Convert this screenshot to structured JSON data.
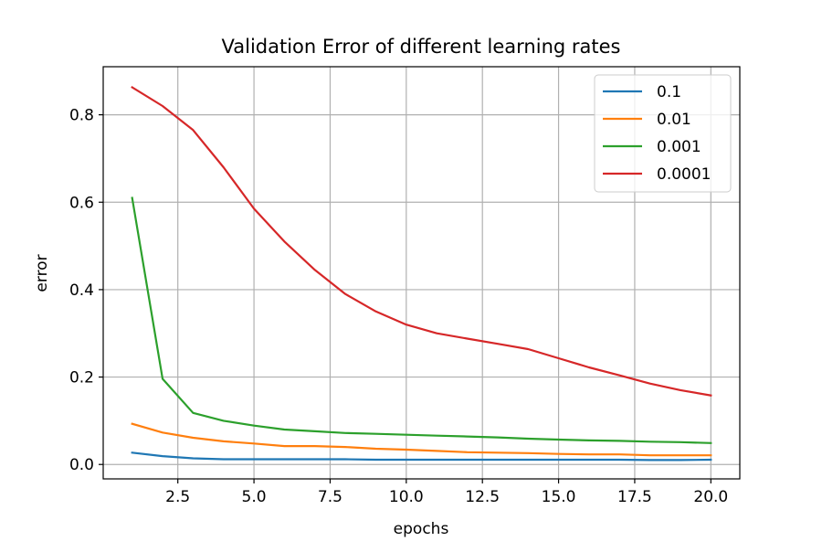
{
  "chart_data": {
    "type": "line",
    "title": "Validation Error of different learning rates",
    "xlabel": "epochs",
    "ylabel": "error",
    "xlim": [
      0.05,
      20.95
    ],
    "ylim": [
      -0.033,
      0.91
    ],
    "xticks": [
      2.5,
      5.0,
      7.5,
      10.0,
      12.5,
      15.0,
      17.5,
      20.0
    ],
    "xtick_labels": [
      "2.5",
      "5.0",
      "7.5",
      "10.0",
      "12.5",
      "15.0",
      "17.5",
      "20.0"
    ],
    "yticks": [
      0.0,
      0.2,
      0.4,
      0.6,
      0.8
    ],
    "ytick_labels": [
      "0.0",
      "0.2",
      "0.4",
      "0.6",
      "0.8"
    ],
    "grid": true,
    "legend_position": "top-right",
    "x": [
      1,
      2,
      3,
      4,
      5,
      6,
      7,
      8,
      9,
      10,
      11,
      12,
      13,
      14,
      15,
      16,
      17,
      18,
      19,
      20
    ],
    "series": [
      {
        "name": "0.1",
        "color": "#1f77b4",
        "values": [
          0.027,
          0.019,
          0.014,
          0.012,
          0.012,
          0.012,
          0.012,
          0.012,
          0.011,
          0.011,
          0.011,
          0.011,
          0.011,
          0.011,
          0.011,
          0.011,
          0.011,
          0.01,
          0.01,
          0.011
        ]
      },
      {
        "name": "0.01",
        "color": "#ff7f0e",
        "values": [
          0.093,
          0.073,
          0.061,
          0.053,
          0.048,
          0.042,
          0.042,
          0.04,
          0.036,
          0.034,
          0.031,
          0.028,
          0.027,
          0.026,
          0.024,
          0.023,
          0.023,
          0.021,
          0.021,
          0.021
        ]
      },
      {
        "name": "0.001",
        "color": "#2ca02c",
        "values": [
          0.61,
          0.196,
          0.118,
          0.1,
          0.089,
          0.08,
          0.076,
          0.072,
          0.07,
          0.068,
          0.066,
          0.064,
          0.062,
          0.059,
          0.057,
          0.055,
          0.054,
          0.052,
          0.051,
          0.049
        ]
      },
      {
        "name": "0.0001",
        "color": "#d62728",
        "values": [
          0.863,
          0.82,
          0.765,
          0.68,
          0.585,
          0.51,
          0.445,
          0.39,
          0.35,
          0.32,
          0.3,
          0.288,
          0.276,
          0.264,
          0.243,
          0.222,
          0.204,
          0.185,
          0.17,
          0.158
        ]
      }
    ]
  }
}
